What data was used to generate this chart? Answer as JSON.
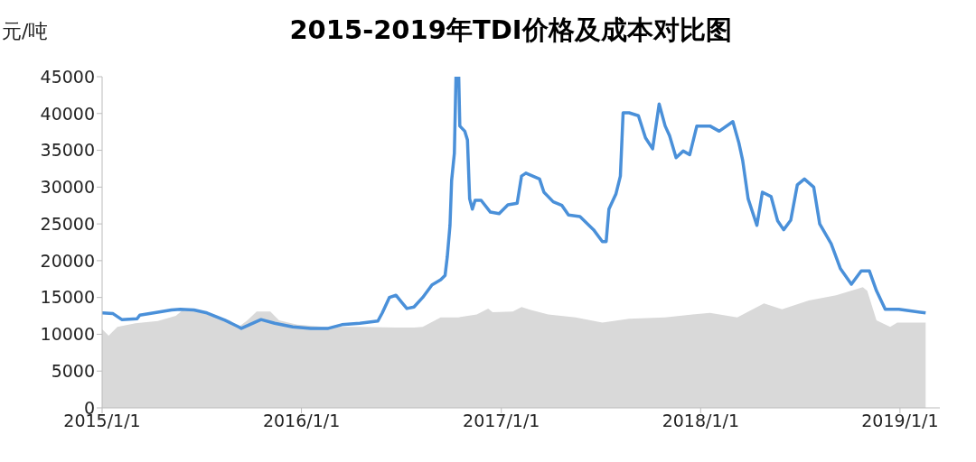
{
  "chart_data": {
    "type": "line",
    "title": "2015-2019年TDI价格及成本对比图",
    "ylabel": "元/吨",
    "ylim": [
      0,
      45000
    ],
    "yticks": [
      0,
      5000,
      10000,
      15000,
      20000,
      25000,
      30000,
      35000,
      40000,
      45000
    ],
    "xlim": [
      "2015-01-01",
      "2019-03-15"
    ],
    "xticks": [
      {
        "value": "2015-01-01",
        "label": "2015/1/1"
      },
      {
        "value": "2016-01-01",
        "label": "2016/1/1"
      },
      {
        "value": "2017-01-01",
        "label": "2017/1/1"
      },
      {
        "value": "2018-01-01",
        "label": "2018/1/1"
      },
      {
        "value": "2019-01-01",
        "label": "2019/1/1"
      }
    ],
    "grid": false,
    "series": [
      {
        "type": "area",
        "color": "#d9d9d9",
        "x": [
          "2015-01-01",
          "2015-01-13",
          "2015-01-29",
          "2015-03-03",
          "2015-04-13",
          "2015-05-16",
          "2015-06-01",
          "2015-06-18",
          "2015-07-21",
          "2015-08-23",
          "2015-09-08",
          "2015-09-24",
          "2015-10-11",
          "2015-11-05",
          "2015-11-21",
          "2015-12-24",
          "2016-02-11",
          "2016-04-17",
          "2016-06-22",
          "2016-07-25",
          "2016-08-10",
          "2016-09-12",
          "2016-10-15",
          "2016-11-17",
          "2016-12-08",
          "2016-12-16",
          "2017-01-22",
          "2017-02-07",
          "2017-02-24",
          "2017-03-28",
          "2017-05-17",
          "2017-07-05",
          "2017-08-23",
          "2017-10-28",
          "2017-12-17",
          "2018-01-18",
          "2018-03-09",
          "2018-04-27",
          "2018-05-30",
          "2018-07-18",
          "2018-09-06",
          "2018-10-25",
          "2018-11-02",
          "2018-11-19",
          "2018-12-14",
          "2018-12-27",
          "2019-02-17"
        ],
        "values": [
          10700,
          9800,
          11000,
          11500,
          11800,
          12500,
          13500,
          13300,
          12500,
          11900,
          11000,
          11900,
          13100,
          13100,
          11900,
          11300,
          11000,
          11000,
          10900,
          10900,
          11000,
          12300,
          12300,
          12700,
          13500,
          13000,
          13100,
          13700,
          13300,
          12700,
          12300,
          11600,
          12100,
          12300,
          12700,
          12900,
          12300,
          14200,
          13400,
          14600,
          15300,
          16400,
          15900,
          11900,
          11000,
          11600,
          11600
        ]
      },
      {
        "color": "#4a90d9",
        "x": [
          "2015-01-01",
          "2015-01-21",
          "2015-02-06",
          "2015-03-06",
          "2015-03-11",
          "2015-04-13",
          "2015-05-08",
          "2015-05-24",
          "2015-06-18",
          "2015-07-12",
          "2015-08-14",
          "2015-09-08",
          "2015-09-13",
          "2015-10-19",
          "2015-11-13",
          "2015-12-16",
          "2016-01-18",
          "2016-02-19",
          "2016-03-15",
          "2016-04-17",
          "2016-05-20",
          "2016-05-28",
          "2016-06-10",
          "2016-06-22",
          "2016-07-03",
          "2016-07-12",
          "2016-07-25",
          "2016-08-10",
          "2016-08-27",
          "2016-09-12",
          "2016-09-20",
          "2016-09-24",
          "2016-09-29",
          "2016-10-02",
          "2016-10-07",
          "2016-10-10",
          "2016-10-15",
          "2016-10-17",
          "2016-10-26",
          "2016-10-31",
          "2016-11-04",
          "2016-11-09",
          "2016-11-14",
          "2016-11-25",
          "2016-12-12",
          "2016-12-28",
          "2017-01-13",
          "2017-01-30",
          "2017-02-07",
          "2017-02-15",
          "2017-03-12",
          "2017-03-20",
          "2017-04-06",
          "2017-04-22",
          "2017-05-04",
          "2017-05-25",
          "2017-06-19",
          "2017-07-05",
          "2017-07-12",
          "2017-07-17",
          "2017-07-30",
          "2017-08-07",
          "2017-08-12",
          "2017-08-23",
          "2017-09-09",
          "2017-09-22",
          "2017-10-05",
          "2017-10-17",
          "2017-10-28",
          "2017-11-05",
          "2017-11-17",
          "2017-11-30",
          "2017-12-12",
          "2017-12-25",
          "2018-01-18",
          "2018-02-04",
          "2018-03-01",
          "2018-03-12",
          "2018-03-19",
          "2018-03-29",
          "2018-04-14",
          "2018-04-24",
          "2018-05-10",
          "2018-05-22",
          "2018-06-02",
          "2018-06-15",
          "2018-06-27",
          "2018-07-10",
          "2018-07-27",
          "2018-08-07",
          "2018-08-28",
          "2018-09-14",
          "2018-10-04",
          "2018-10-22",
          "2018-11-06",
          "2018-11-19",
          "2018-12-05",
          "2018-12-30",
          "2019-02-17"
        ],
        "values": [
          12900,
          12800,
          12000,
          12100,
          12600,
          13000,
          13300,
          13400,
          13300,
          12900,
          11900,
          11000,
          10800,
          12000,
          11500,
          11000,
          10800,
          10800,
          11300,
          11500,
          11800,
          12900,
          15000,
          15300,
          14300,
          13500,
          13700,
          15000,
          16700,
          17400,
          18000,
          20500,
          24800,
          30900,
          34600,
          45000,
          45000,
          38300,
          37600,
          36400,
          28400,
          27000,
          28200,
          28200,
          26600,
          26400,
          27600,
          27800,
          31500,
          31900,
          31100,
          29300,
          28000,
          27500,
          26200,
          26000,
          24200,
          22600,
          22600,
          27000,
          29100,
          31500,
          40100,
          40100,
          39700,
          36700,
          35200,
          41300,
          38300,
          37000,
          34000,
          34900,
          34400,
          38300,
          38300,
          37600,
          38900,
          36000,
          33600,
          28400,
          24800,
          29300,
          28700,
          25400,
          24200,
          25500,
          30300,
          31100,
          30000,
          25000,
          22300,
          18900,
          16800,
          18600,
          18600,
          15900,
          13400,
          13400,
          12900
        ]
      }
    ]
  }
}
